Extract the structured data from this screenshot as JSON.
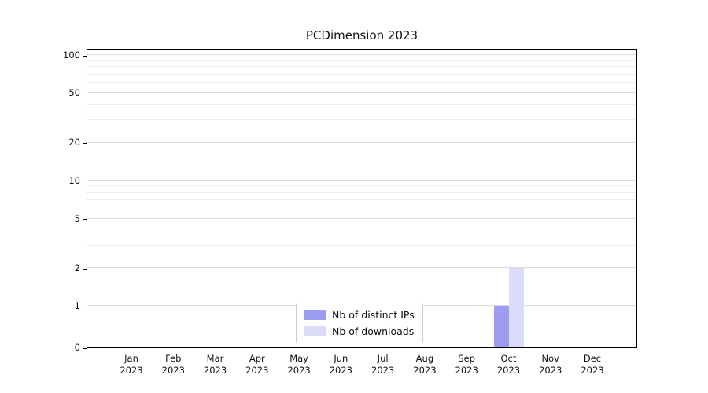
{
  "title": "PCDimension 2023",
  "chart_data": {
    "type": "bar",
    "title": "PCDimension 2023",
    "yscale": "symlog",
    "ylim": [
      0,
      105
    ],
    "grid": "horizontal",
    "legend_position": "lower center",
    "categories": [
      {
        "month": "Jan",
        "year": "2023"
      },
      {
        "month": "Feb",
        "year": "2023"
      },
      {
        "month": "Mar",
        "year": "2023"
      },
      {
        "month": "Apr",
        "year": "2023"
      },
      {
        "month": "May",
        "year": "2023"
      },
      {
        "month": "Jun",
        "year": "2023"
      },
      {
        "month": "Jul",
        "year": "2023"
      },
      {
        "month": "Aug",
        "year": "2023"
      },
      {
        "month": "Sep",
        "year": "2023"
      },
      {
        "month": "Oct",
        "year": "2023"
      },
      {
        "month": "Nov",
        "year": "2023"
      },
      {
        "month": "Dec",
        "year": "2023"
      }
    ],
    "series": [
      {
        "name": "Nb of distinct IPs",
        "color": "#9d9df0",
        "values": [
          0,
          0,
          0,
          0,
          0,
          0,
          0,
          0,
          0,
          1,
          0,
          0
        ]
      },
      {
        "name": "Nb of downloads",
        "color": "#dcdcf8",
        "values": [
          0,
          0,
          0,
          0,
          0,
          0,
          0,
          0,
          0,
          2,
          0,
          0
        ]
      }
    ],
    "yticks": [
      0,
      1,
      2,
      5,
      10,
      20,
      50,
      100
    ],
    "minor_yticks": [
      3,
      4,
      6,
      7,
      8,
      9,
      30,
      40,
      60,
      70,
      80,
      90
    ]
  }
}
